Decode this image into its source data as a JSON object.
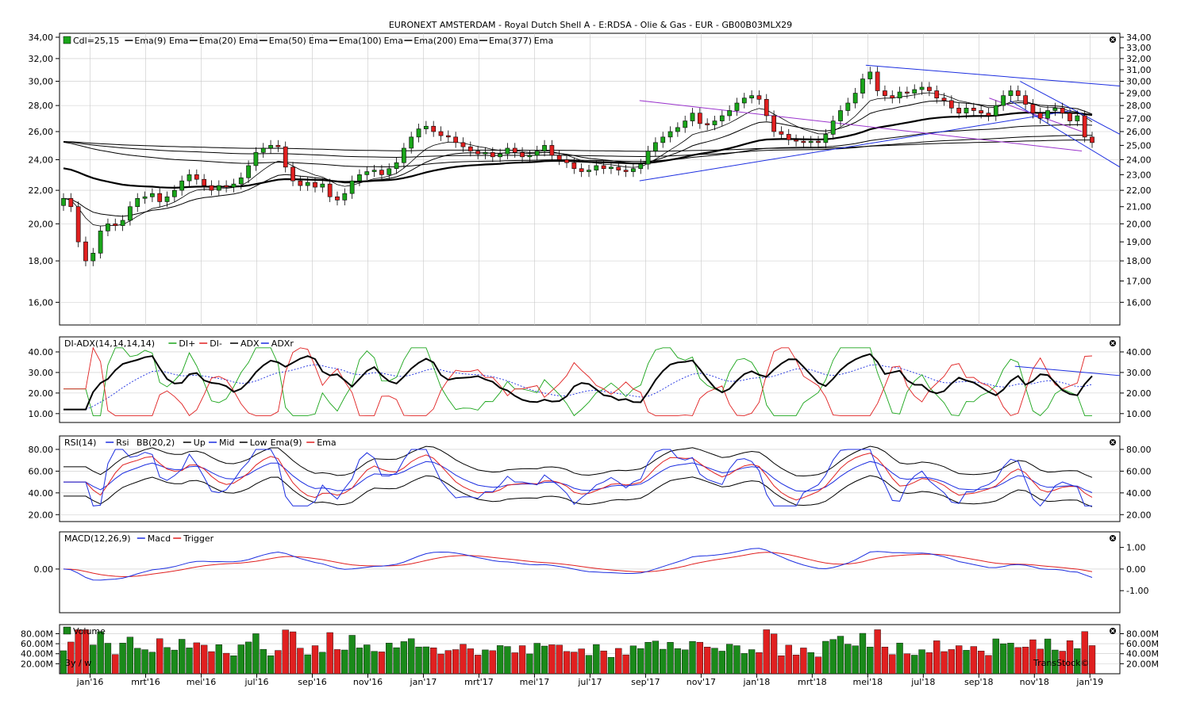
{
  "header": {
    "title": "EURONEXT AMSTERDAM - Royal Dutch Shell A - E:RDSA - Olie & Gas - EUR - GB00B03MLX29"
  },
  "panels": {
    "price": {
      "legend": [
        "Cdl=25,15",
        "Ema(9)",
        "Ema",
        "Ema(20)",
        "Ema",
        "Ema(50)",
        "Ema",
        "Ema(100)",
        "Ema",
        "Ema(200)",
        "Ema",
        "Ema(377)",
        "Ema"
      ],
      "left_ticks": [
        "34,00",
        "32,00",
        "30,00",
        "28,00",
        "26,00",
        "24,00",
        "22,00",
        "20,00",
        "18,00",
        "16,00"
      ],
      "right_ticks": [
        "34,00",
        "33,00",
        "32,00",
        "31,00",
        "30,00",
        "29,00",
        "28,00",
        "27,00",
        "26,00",
        "25,00",
        "24,00",
        "23,00",
        "22,00",
        "21,00",
        "20,00",
        "19,00",
        "18,00",
        "17,00",
        "16,00"
      ]
    },
    "dmi": {
      "legend": [
        "DI-ADX(14,14,14,14)",
        "DI+",
        "DI-",
        "ADX",
        "ADXr"
      ],
      "ticks": [
        "40.00",
        "30.00",
        "20.00",
        "10.00"
      ]
    },
    "rsi": {
      "legend": [
        "RSI(14)",
        "Rsi",
        "BB(20,2)",
        "Up",
        "Mid",
        "Low",
        "Ema(9)",
        "Ema"
      ],
      "ticks": [
        "80.00",
        "60.00",
        "40.00",
        "20.00"
      ]
    },
    "macd": {
      "legend": [
        "MACD(12,26,9)",
        "Macd",
        "Trigger"
      ],
      "left_ticks": [
        "0.00"
      ],
      "right_ticks": [
        "1.00",
        "0.00",
        "-1.00"
      ]
    },
    "volume": {
      "legend": [
        "Volume"
      ],
      "ticks": [
        "80.00M",
        "60.00M",
        "40.00M",
        "20.00M"
      ],
      "period_label": "3y / w",
      "watermark": "TransStock©"
    }
  },
  "x_axis": {
    "labels": [
      "jan'16",
      "mrt'16",
      "mei'16",
      "jul'16",
      "sep'16",
      "nov'16",
      "jan'17",
      "mrt'17",
      "mei'17",
      "jul'17",
      "sep'17",
      "nov'17",
      "jan'18",
      "mrt'18",
      "mei'18",
      "jul'18",
      "sep'18",
      "nov'18",
      "jan'19"
    ]
  },
  "colors": {
    "up": "#1aa51a",
    "down": "#e02020",
    "blue": "#1c2ee0",
    "purple": "#9a33cc",
    "vol_up": "#1a8a1a",
    "vol_down": "#e02020"
  },
  "chart_data": {
    "type": "candlestick",
    "period": "weekly",
    "y_scale": "log",
    "ylim": [
      15,
      34
    ],
    "last_close": 25.15,
    "closes": [
      21.5,
      21.0,
      19.0,
      18.0,
      18.4,
      19.6,
      20.0,
      19.9,
      20.2,
      21.0,
      21.5,
      21.6,
      21.8,
      21.3,
      21.6,
      22.0,
      22.6,
      23.0,
      22.7,
      22.3,
      22.0,
      22.3,
      22.2,
      22.4,
      22.8,
      23.6,
      24.5,
      24.8,
      25.0,
      24.9,
      23.5,
      22.6,
      22.3,
      22.5,
      22.2,
      22.4,
      21.6,
      21.4,
      21.8,
      22.6,
      23.0,
      23.2,
      23.3,
      23.0,
      23.4,
      23.8,
      24.8,
      25.6,
      26.2,
      26.4,
      26.0,
      25.7,
      25.6,
      25.2,
      24.9,
      24.6,
      24.4,
      24.5,
      24.2,
      24.4,
      24.8,
      24.5,
      24.2,
      24.3,
      24.6,
      25.0,
      24.3,
      24.0,
      23.8,
      23.4,
      23.2,
      23.3,
      23.6,
      23.4,
      23.5,
      23.3,
      23.2,
      23.4,
      23.7,
      24.6,
      25.2,
      25.6,
      26.0,
      26.3,
      26.8,
      27.4,
      26.6,
      26.5,
      26.8,
      27.2,
      27.6,
      28.2,
      28.6,
      28.8,
      28.5,
      27.2,
      26.0,
      25.8,
      25.4,
      25.3,
      25.2,
      25.3,
      25.2,
      25.8,
      26.8,
      27.6,
      28.2,
      29.0,
      30.2,
      30.8,
      29.2,
      28.8,
      28.6,
      29.1,
      29.0,
      29.3,
      29.5,
      29.2,
      28.6,
      28.4,
      27.8,
      27.4,
      27.8,
      27.6,
      27.4,
      27.2,
      28.0,
      28.8,
      29.2,
      28.8,
      28.1,
      27.4,
      27.0,
      27.6,
      27.8,
      27.4,
      26.8,
      27.2,
      25.6,
      25.2
    ],
    "ema_periods": [
      9,
      20,
      50,
      100,
      200,
      377
    ],
    "trendlines": {
      "resistance_blue_top": [
        [
          27.4,
          30.0
        ],
        [
          28.0,
          29.4
        ]
      ],
      "support_blue": [
        [
          22.2,
          26.6
        ],
        [
          24.2,
          27.2
        ]
      ],
      "purple_channel": [
        [
          27.4,
          26.6
        ],
        [
          26.6,
          25.0
        ]
      ]
    },
    "indicators": {
      "dmi_period": [
        14,
        14,
        14,
        14
      ],
      "dmi_range": [
        8,
        45
      ],
      "rsi_period": 14,
      "rsi_range": [
        18,
        88
      ],
      "bollinger": [
        20,
        2
      ],
      "macd": [
        12,
        26,
        9
      ],
      "macd_range": [
        -1.8,
        1.5
      ],
      "volume_range_millions": [
        0,
        95
      ]
    }
  }
}
